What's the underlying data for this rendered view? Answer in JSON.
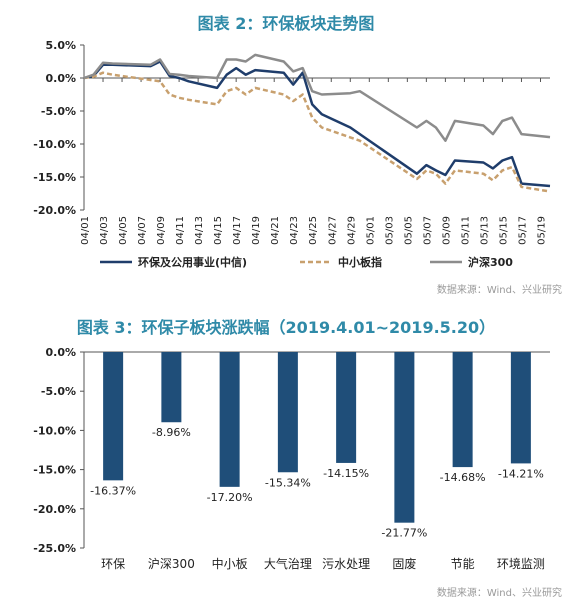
{
  "chart_data": [
    {
      "type": "line",
      "title": "图表 2：环保板块走势图",
      "source": "数据来源：Wind、兴业研究",
      "ylim": [
        -20,
        5
      ],
      "y_ticks": [
        "5.0%",
        "0.0%",
        "-5.0%",
        "-10.0%",
        "-15.0%",
        "-20.0%"
      ],
      "y_tick_values": [
        5,
        0,
        -5,
        -10,
        -15,
        -20
      ],
      "x": [
        "04/01",
        "04/02",
        "04/03",
        "04/04",
        "04/08",
        "04/09",
        "04/10",
        "04/11",
        "04/12",
        "04/15",
        "04/16",
        "04/17",
        "04/18",
        "04/19",
        "04/22",
        "04/23",
        "04/24",
        "04/25",
        "04/26",
        "04/29",
        "04/30",
        "05/06",
        "05/07",
        "05/08",
        "05/09",
        "05/10",
        "05/13",
        "05/14",
        "05/15",
        "05/16",
        "05/17",
        "05/20"
      ],
      "x_tick_labels": [
        "04/01",
        "04/03",
        "04/05",
        "04/07",
        "04/09",
        "04/11",
        "04/13",
        "04/15",
        "04/17",
        "04/19",
        "04/21",
        "04/23",
        "04/25",
        "04/27",
        "04/29",
        "05/01",
        "05/03",
        "05/05",
        "05/07",
        "05/09",
        "05/11",
        "05/13",
        "05/15",
        "05/17",
        "05/19"
      ],
      "series": [
        {
          "name": "环保及公用事业(中信)",
          "color": "#1f3d6b",
          "dash": "solid",
          "values": [
            0.0,
            0.3,
            2.0,
            2.0,
            1.8,
            2.5,
            0.3,
            0.0,
            -0.5,
            -1.5,
            0.5,
            1.5,
            0.5,
            1.2,
            0.8,
            -1.0,
            0.8,
            -4.0,
            -5.5,
            -7.5,
            -8.5,
            -14.5,
            -13.2,
            -14.0,
            -14.7,
            -12.5,
            -12.8,
            -13.7,
            -12.5,
            -12.0,
            -16.0,
            -16.37
          ]
        },
        {
          "name": "中小板指",
          "color": "#c8a06e",
          "dash": "dashed",
          "values": [
            0.0,
            0.2,
            0.8,
            0.5,
            -0.3,
            -0.5,
            -2.5,
            -3.0,
            -3.3,
            -4.0,
            -2.0,
            -1.5,
            -2.5,
            -1.5,
            -2.5,
            -3.5,
            -2.5,
            -6.0,
            -7.5,
            -9.0,
            -9.5,
            -15.3,
            -14.0,
            -14.5,
            -16.0,
            -14.0,
            -14.5,
            -15.5,
            -14.0,
            -13.5,
            -16.5,
            -17.2
          ]
        },
        {
          "name": "沪深300",
          "color": "#8c8c8c",
          "dash": "solid",
          "values": [
            0.0,
            0.5,
            2.3,
            2.2,
            2.0,
            2.8,
            0.6,
            0.5,
            0.3,
            0.0,
            2.8,
            2.8,
            2.5,
            3.5,
            2.5,
            1.0,
            1.5,
            -2.0,
            -2.5,
            -2.3,
            -2.0,
            -7.5,
            -6.5,
            -7.5,
            -9.5,
            -6.5,
            -7.2,
            -8.5,
            -6.5,
            -6.0,
            -8.5,
            -8.96
          ]
        }
      ]
    },
    {
      "type": "bar",
      "title": "图表 3：环保子板块涨跌幅（2019.4.01~2019.5.20）",
      "source": "数据来源：Wind、兴业研究",
      "ylim": [
        -25,
        0
      ],
      "y_ticks": [
        "0.0%",
        "-5.0%",
        "-10.0%",
        "-15.0%",
        "-20.0%",
        "-25.0%"
      ],
      "y_tick_values": [
        0,
        -5,
        -10,
        -15,
        -20,
        -25
      ],
      "categories": [
        "环保",
        "沪深300",
        "中小板",
        "大气治理",
        "污水处理",
        "固废",
        "节能",
        "环境监测"
      ],
      "values": [
        -16.37,
        -8.96,
        -17.2,
        -15.34,
        -14.15,
        -21.77,
        -14.68,
        -14.21
      ],
      "data_labels": [
        "-16.37%",
        "-8.96%",
        "-17.20%",
        "-15.34%",
        "-14.15%",
        "-21.77%",
        "-14.68%",
        "-14.21%"
      ],
      "bar_color": "#1f4e79",
      "grid": false
    }
  ]
}
